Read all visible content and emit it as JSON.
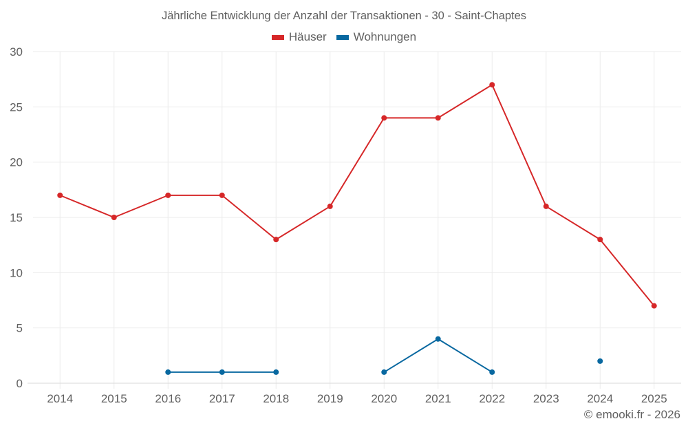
{
  "chart_data": {
    "type": "line",
    "title": "Jährliche Entwicklung der Anzahl der Transaktionen - 30 - Saint-Chaptes",
    "xlabel": "",
    "ylabel": "",
    "categories": [
      "2014",
      "2015",
      "2016",
      "2017",
      "2018",
      "2019",
      "2020",
      "2021",
      "2022",
      "2023",
      "2024",
      "2025"
    ],
    "series": [
      {
        "name": "Häuser",
        "color": "#d62728",
        "values": [
          17,
          15,
          17,
          17,
          13,
          16,
          24,
          24,
          27,
          16,
          13,
          7
        ]
      },
      {
        "name": "Wohnungen",
        "color": "#0868a0",
        "values": [
          null,
          null,
          1,
          1,
          1,
          null,
          1,
          4,
          1,
          null,
          2,
          null
        ]
      }
    ],
    "ylim": [
      0,
      30
    ],
    "yticks": [
      0,
      5,
      10,
      15,
      20,
      25,
      30
    ],
    "grid": true,
    "legend_position": "top"
  },
  "header": {
    "title": "Jährliche Entwicklung der Anzahl der Transaktionen - 30 - Saint-Chaptes"
  },
  "legend": {
    "items": [
      {
        "label": "Häuser",
        "color": "#d62728"
      },
      {
        "label": "Wohnungen",
        "color": "#0868a0"
      }
    ]
  },
  "footer": {
    "copyright": "© emooki.fr - 2026"
  },
  "style": {
    "grid_color": "#ebebeb",
    "axis_color": "#d9d9d9",
    "text_color": "#606060"
  }
}
